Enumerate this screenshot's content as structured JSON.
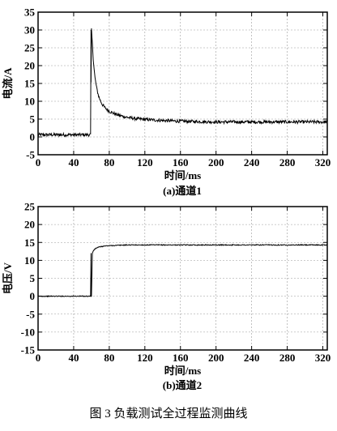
{
  "figure_caption": "图 3    负载测试全过程监测曲线",
  "chart_data": [
    {
      "type": "line",
      "caption": "(a)通道1",
      "xlabel": "时间/ms",
      "ylabel": "电流/A",
      "xlim": [
        0,
        325
      ],
      "ylim": [
        -5,
        35
      ],
      "xticks": [
        0,
        40,
        80,
        120,
        160,
        200,
        240,
        280,
        320
      ],
      "yticks": [
        -5,
        0,
        5,
        10,
        15,
        20,
        25,
        30,
        35
      ],
      "grid": true,
      "series": [
        {
          "color": "#000000",
          "x": [
            0,
            20,
            40,
            59,
            60,
            61,
            62,
            63,
            64,
            66,
            68,
            70,
            72,
            75,
            80,
            85,
            90,
            100,
            110,
            120,
            140,
            160,
            180,
            200,
            240,
            280,
            325
          ],
          "y": [
            0.6,
            0.6,
            0.6,
            0.6,
            30,
            26,
            22,
            19,
            16.5,
            13.5,
            11.5,
            10.2,
            9.2,
            8.2,
            7.2,
            6.6,
            6.1,
            5.5,
            5.1,
            4.9,
            4.6,
            4.4,
            4.3,
            4.2,
            4.2,
            4.2,
            4.2
          ]
        }
      ]
    },
    {
      "type": "line",
      "caption": "(b)通道2",
      "xlabel": "时间/ms",
      "ylabel": "电压/V",
      "xlim": [
        0,
        325
      ],
      "ylim": [
        -15,
        25
      ],
      "xticks": [
        0,
        40,
        80,
        120,
        160,
        200,
        240,
        280,
        320
      ],
      "yticks": [
        -15,
        -10,
        -5,
        0,
        5,
        10,
        15,
        20,
        25
      ],
      "grid": true,
      "series": [
        {
          "color": "#000000",
          "x": [
            0,
            20,
            40,
            59,
            60,
            61,
            62,
            64,
            66,
            70,
            75,
            80,
            90,
            100,
            120,
            160,
            200,
            240,
            280,
            325
          ],
          "y": [
            0,
            0,
            0,
            0,
            0,
            12,
            12.6,
            13.2,
            13.5,
            13.8,
            14.0,
            14.1,
            14.2,
            14.3,
            14.3,
            14.3,
            14.3,
            14.3,
            14.3,
            14.3
          ]
        }
      ]
    }
  ]
}
